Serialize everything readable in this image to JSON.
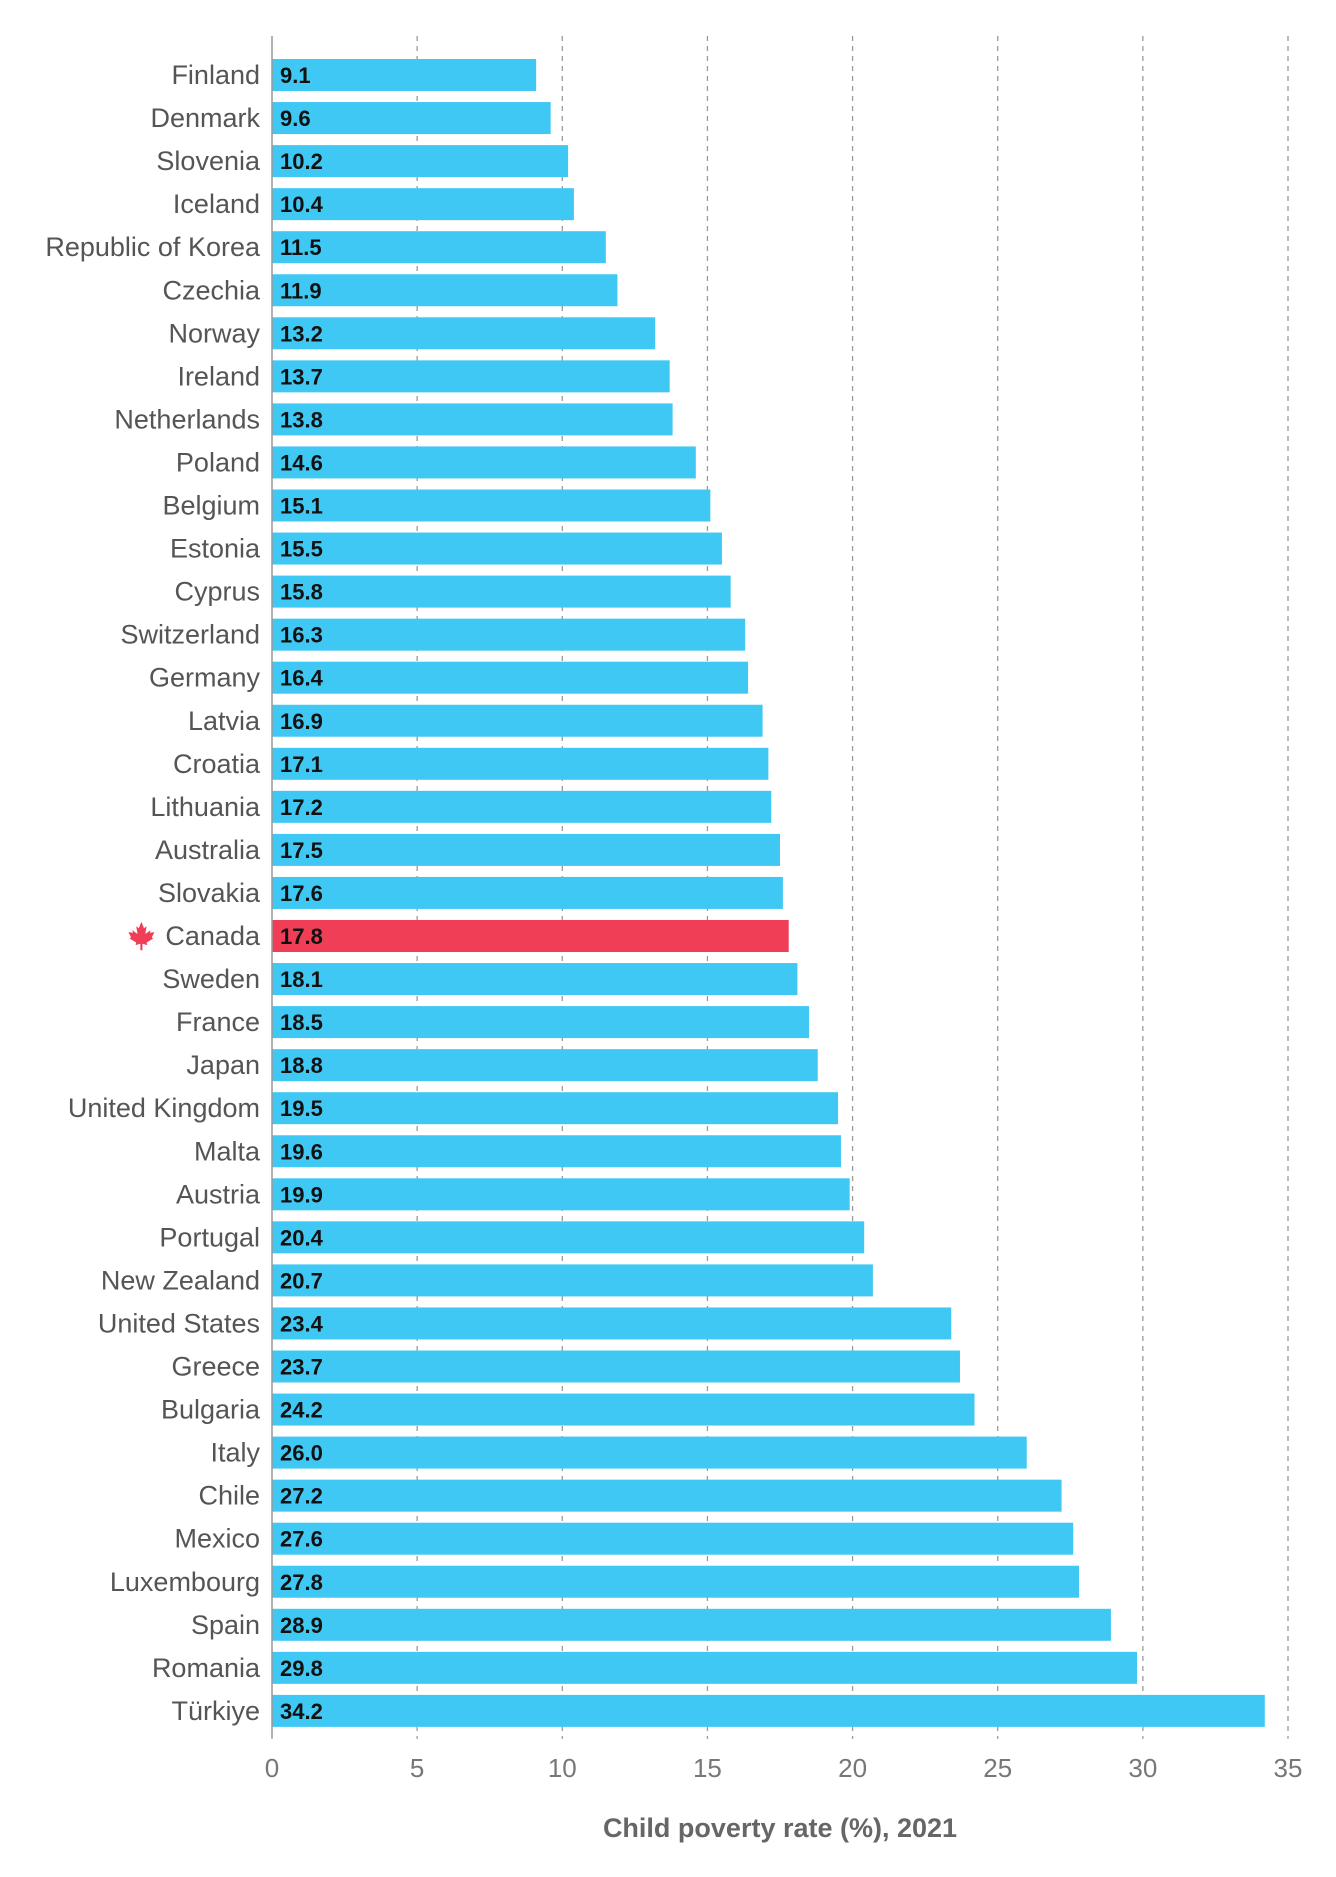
{
  "chart_data": {
    "type": "bar",
    "orientation": "horizontal",
    "title": "",
    "xlabel": "Child poverty rate (%), 2021",
    "ylabel": "",
    "xlim": [
      0,
      35
    ],
    "xticks": [
      0,
      5,
      10,
      15,
      20,
      25,
      30,
      35
    ],
    "grid": "vertical dashed",
    "categories": [
      "Finland",
      "Denmark",
      "Slovenia",
      "Iceland",
      "Republic of Korea",
      "Czechia",
      "Norway",
      "Ireland",
      "Netherlands",
      "Poland",
      "Belgium",
      "Estonia",
      "Cyprus",
      "Switzerland",
      "Germany",
      "Latvia",
      "Croatia",
      "Lithuania",
      "Australia",
      "Slovakia",
      "Canada",
      "Sweden",
      "France",
      "Japan",
      "United Kingdom",
      "Malta",
      "Austria",
      "Portugal",
      "New Zealand",
      "United States",
      "Greece",
      "Bulgaria",
      "Italy",
      "Chile",
      "Mexico",
      "Luxembourg",
      "Spain",
      "Romania",
      "Türkiye"
    ],
    "values": [
      9.1,
      9.6,
      10.2,
      10.4,
      11.5,
      11.9,
      13.2,
      13.7,
      13.8,
      14.6,
      15.1,
      15.5,
      15.8,
      16.3,
      16.4,
      16.9,
      17.1,
      17.2,
      17.5,
      17.6,
      17.8,
      18.1,
      18.5,
      18.8,
      19.5,
      19.6,
      19.9,
      20.4,
      20.7,
      23.4,
      23.7,
      24.2,
      26.0,
      27.2,
      27.6,
      27.8,
      28.9,
      29.8,
      34.2
    ],
    "value_labels": [
      "9.1",
      "9.6",
      "10.2",
      "10.4",
      "11.5",
      "11.9",
      "13.2",
      "13.7",
      "13.8",
      "14.6",
      "15.1",
      "15.5",
      "15.8",
      "16.3",
      "16.4",
      "16.9",
      "17.1",
      "17.2",
      "17.5",
      "17.6",
      "17.8",
      "18.1",
      "18.5",
      "18.8",
      "19.5",
      "19.6",
      "19.9",
      "20.4",
      "20.7",
      "23.4",
      "23.7",
      "24.2",
      "26.0",
      "27.2",
      "27.6",
      "27.8",
      "28.9",
      "29.8",
      "34.2"
    ],
    "highlight": "Canada",
    "highlight_icon": "maple-leaf-icon",
    "colors": {
      "bar": "#40c8f4",
      "highlight": "#ef3e55"
    }
  }
}
